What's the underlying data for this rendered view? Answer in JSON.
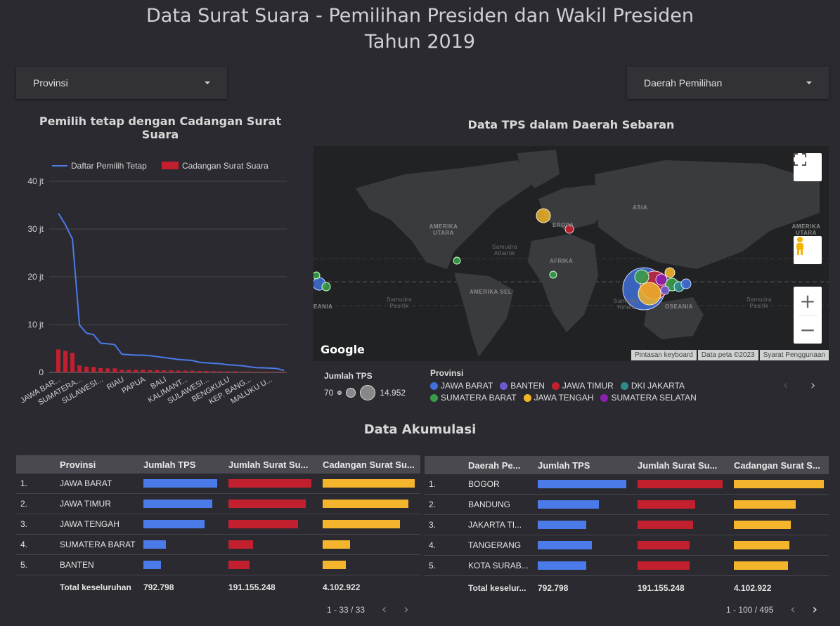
{
  "header": {
    "title_line1": "Data Surat Suara - Pemilihan Presiden dan Wakil Presiden",
    "title_line2": "Tahun 2019"
  },
  "filters": {
    "provinsi_label": "Provinsi",
    "daerah_label": "Daerah Pemilihan"
  },
  "left_chart": {
    "section_title": "Pemilih tetap dengan Cadangan Surat Suara"
  },
  "chart_data": {
    "type": "line",
    "title": "Pemilih tetap dengan Cadangan Surat Suara",
    "legend_position": "top",
    "legend": [
      "Daftar Pemilih Tetap",
      "Cadangan Surat Suara"
    ],
    "y_ticks": [
      "0",
      "10 jt",
      "20 jt",
      "30 jt",
      "40 jt"
    ],
    "ylim": [
      0,
      40
    ],
    "x_tick_labels": [
      "JAWA BAR...",
      "SUMATERA...",
      "SULAWESI...",
      "RIAU",
      "PAPUA",
      "BALI",
      "KALIMANT...",
      "SULAWESI...",
      "BENGKULU",
      "KEP. BANG...",
      "MALUKU U..."
    ],
    "series": [
      {
        "name": "Daftar Pemilih Tetap",
        "color": "#4a7be8",
        "values": [
          33.3,
          30.9,
          27.9,
          9.9,
          8.2,
          7.9,
          6.1,
          6.0,
          5.8,
          3.8,
          3.7,
          3.6,
          3.6,
          3.5,
          3.3,
          3.1,
          2.9,
          2.7,
          2.6,
          2.5,
          2.1,
          2.0,
          1.9,
          1.8,
          1.6,
          1.5,
          1.4,
          1.2,
          1.0,
          0.95,
          0.9,
          0.8,
          0.4
        ]
      },
      {
        "name": "Cadangan Surat Suara",
        "color": "#c3202f",
        "values": [
          0.8,
          0.75,
          0.68,
          0.24,
          0.2,
          0.19,
          0.15,
          0.14,
          0.14,
          0.09,
          0.09,
          0.09,
          0.09,
          0.08,
          0.08,
          0.07,
          0.07,
          0.06,
          0.06,
          0.06,
          0.05,
          0.05,
          0.04,
          0.04,
          0.04,
          0.04,
          0.03,
          0.03,
          0.02,
          0.02,
          0.02,
          0.02,
          0.01
        ]
      }
    ]
  },
  "map": {
    "section_title": "Data TPS dalam Daerah Sebaran",
    "google_logo": "Google",
    "attribution": [
      "Pintasan keyboard",
      "Data peta ©2023",
      "Syarat Penggunaan"
    ],
    "labels": {
      "asia": "ASIA",
      "amerika_utara": "AMERIKA UTARA",
      "eropa": "EROPA",
      "afrika": "AFRIKA",
      "amerika_sel": "AMERIKA SEL",
      "oseania": "OSEANIA",
      "oseania_left": "EANIA",
      "amerika_utara_right": "AMERIKA UTARA",
      "samudra_atlantik": "Samudra Atlantik",
      "samudra_pasifik": "Samudra Pasifik",
      "samudra_hindia": "Samudra Hindia",
      "samudra_pasifik_right": "Samudra Pasifik"
    },
    "zoom_in": "+",
    "zoom_out": "−"
  },
  "map_legend": {
    "size_title": "Jumlah TPS",
    "size_min": "70",
    "size_max": "14.952",
    "color_title": "Provinsi",
    "provinces": [
      {
        "name": "JAWA BARAT",
        "color": "#3f6fd8"
      },
      {
        "name": "BANTEN",
        "color": "#6a5acd"
      },
      {
        "name": "JAWA TIMUR",
        "color": "#c3202f"
      },
      {
        "name": "DKI JAKARTA",
        "color": "#2e8b8b"
      },
      {
        "name": "SUMATERA BARAT",
        "color": "#3a9b4a"
      },
      {
        "name": "JAWA TENGAH",
        "color": "#f0b429"
      },
      {
        "name": "SUMATERA SELATAN",
        "color": "#8b1fb0"
      }
    ]
  },
  "accumulation": {
    "section_title": "Data Akumulasi"
  },
  "table_left": {
    "headers": [
      "Provinsi",
      "Jumlah TPS",
      "Jumlah Surat Su...",
      "Cadangan Surat Su..."
    ],
    "rows": [
      {
        "no": "1.",
        "name": "JAWA BARAT",
        "tps": 1.0,
        "surat": 1.0,
        "cadangan": 1.0
      },
      {
        "no": "2.",
        "name": "JAWA TIMUR",
        "tps": 0.93,
        "surat": 0.93,
        "cadangan": 0.93
      },
      {
        "no": "3.",
        "name": "JAWA TENGAH",
        "tps": 0.83,
        "surat": 0.84,
        "cadangan": 0.84
      },
      {
        "no": "4.",
        "name": "SUMATERA BARAT",
        "tps": 0.3,
        "surat": 0.3,
        "cadangan": 0.3
      },
      {
        "no": "5.",
        "name": "BANTEN",
        "tps": 0.24,
        "surat": 0.25,
        "cadangan": 0.25
      }
    ],
    "total_label": "Total keseluruhan",
    "total_tps": "792.798",
    "total_surat": "191.155.248",
    "total_cadangan": "4.102.922",
    "pager": "1 - 33 / 33"
  },
  "table_right": {
    "headers": [
      "Daerah Pe...",
      "Jumlah TPS",
      "Jumlah Surat Su...",
      "Cadangan Surat S..."
    ],
    "rows": [
      {
        "no": "1.",
        "name": "BOGOR",
        "tps": 1.0,
        "surat": 1.0,
        "cadangan": 1.0
      },
      {
        "no": "2.",
        "name": "BANDUNG",
        "tps": 0.69,
        "surat": 0.68,
        "cadangan": 0.69
      },
      {
        "no": "3.",
        "name": "JAKARTA TI...",
        "tps": 0.55,
        "surat": 0.65,
        "cadangan": 0.63
      },
      {
        "no": "4.",
        "name": "TANGERANG",
        "tps": 0.61,
        "surat": 0.61,
        "cadangan": 0.62
      },
      {
        "no": "5.",
        "name": "KOTA SURAB...",
        "tps": 0.55,
        "surat": 0.61,
        "cadangan": 0.6
      }
    ],
    "total_label": "Total keselur...",
    "total_tps": "792.798",
    "total_surat": "191.155.248",
    "total_cadangan": "4.102.922",
    "pager": "1 - 100 / 495"
  },
  "colors": {
    "tps_bar": "#4a7be8",
    "surat_bar": "#c3202f",
    "cadangan_bar": "#f4b52c"
  }
}
